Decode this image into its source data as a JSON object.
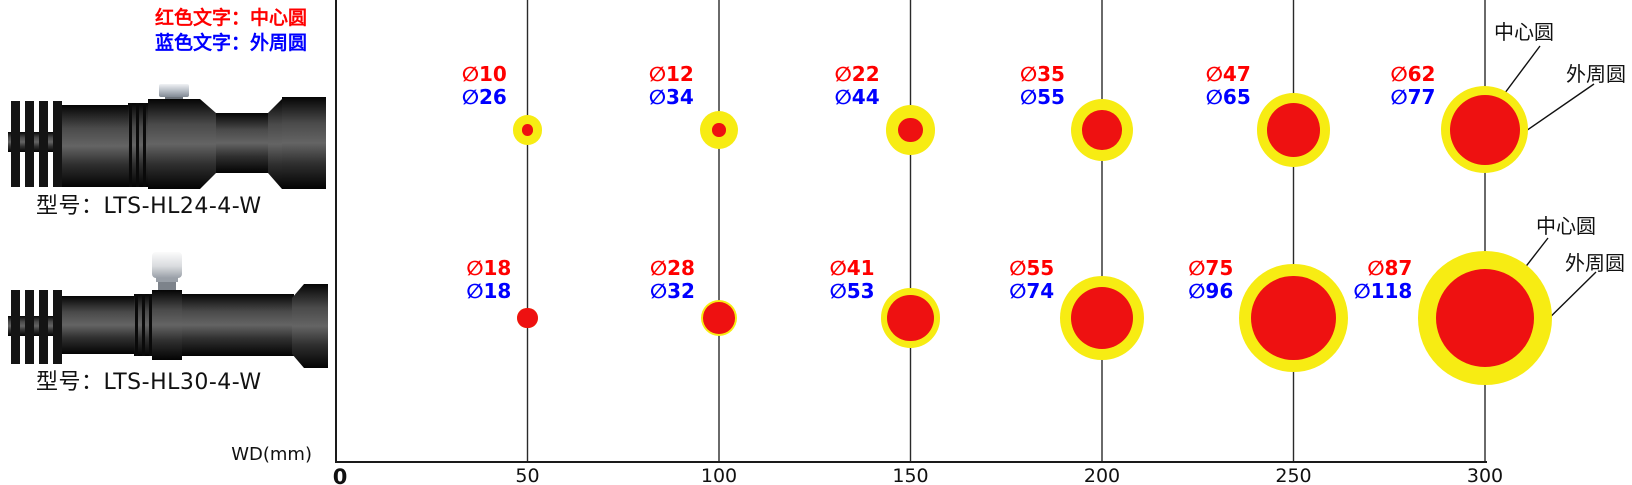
{
  "colors": {
    "center_circle": "#ee1111",
    "outer_circle": "#f7ec13",
    "red_text": "#ff0000",
    "blue_text": "#0000ff",
    "line": "#1a1a1a"
  },
  "diameter_prefix": "∅",
  "legend": {
    "red": "红色文字：中心圆",
    "blue": "蓝色文字：外周圆"
  },
  "devices": [
    {
      "label": "型号：LTS-HL24-4-W"
    },
    {
      "label": "型号：LTS-HL30-4-W"
    }
  ],
  "annotations": {
    "center_label": "中心圆",
    "outer_label": "外周圆"
  },
  "axis": {
    "label": "WD(mm)",
    "ticks": [
      "0",
      "50",
      "100",
      "150",
      "200",
      "250",
      "300"
    ]
  },
  "chart_data": {
    "type": "scatter",
    "title": "Spot diameter vs working distance for LTS-HL24-4-W and LTS-HL30-4-W",
    "xlabel": "WD(mm)",
    "x": [
      50,
      100,
      150,
      200,
      250,
      300
    ],
    "x_range": [
      0,
      300
    ],
    "grid": true,
    "series": [
      {
        "name": "LTS-HL24-4-W 中心圆 ∅(mm)",
        "values": [
          10,
          12,
          22,
          35,
          47,
          62
        ]
      },
      {
        "name": "LTS-HL24-4-W 外周圆 ∅(mm)",
        "values": [
          26,
          34,
          44,
          55,
          65,
          77
        ]
      },
      {
        "name": "LTS-HL30-4-W 中心圆 ∅(mm)",
        "values": [
          18,
          28,
          41,
          55,
          75,
          87
        ]
      },
      {
        "name": "LTS-HL30-4-W 外周圆 ∅(mm)",
        "values": [
          18,
          32,
          53,
          74,
          96,
          118
        ]
      }
    ]
  }
}
